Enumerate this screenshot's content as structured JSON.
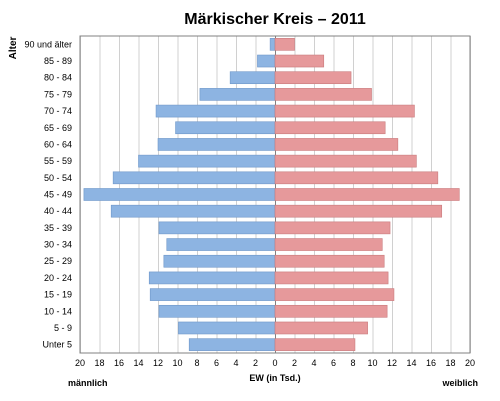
{
  "chart_data": {
    "type": "bar",
    "title": "Märkischer Kreis – 2011",
    "ylabel": "Alter",
    "xlabel": "EW (in Tsd.)",
    "xlabel_left": "männlich",
    "xlabel_right": "weiblich",
    "xlim": [
      -20,
      20
    ],
    "x_ticks": [
      -20,
      -18,
      -16,
      -14,
      -12,
      -10,
      -8,
      -6,
      -4,
      -2,
      0,
      2,
      4,
      6,
      8,
      10,
      12,
      14,
      16,
      18,
      20
    ],
    "x_tick_labels": [
      "20",
      "18",
      "16",
      "14",
      "12",
      "10",
      "8",
      "6",
      "4",
      "2",
      "0",
      "2",
      "4",
      "6",
      "8",
      "10",
      "12",
      "14",
      "16",
      "18",
      "20"
    ],
    "grid": true,
    "categories": [
      "90 und älter",
      "85 - 89",
      "80 - 84",
      "75 - 79",
      "70 - 74",
      "65 - 69",
      "60 - 64",
      "55 - 59",
      "50 - 54",
      "45 - 49",
      "40 - 44",
      "35 - 39",
      "30 - 34",
      "25 - 29",
      "20 - 24",
      "15 - 19",
      "10 - 14",
      "5 - 9",
      "Unter 5"
    ],
    "series": [
      {
        "name": "männlich",
        "color": "#8db4e2",
        "values": [
          0.5,
          1.8,
          4.6,
          7.7,
          12.2,
          10.2,
          12.0,
          14.0,
          16.6,
          19.6,
          16.8,
          11.9,
          11.1,
          11.4,
          12.9,
          12.8,
          11.9,
          9.9,
          8.8
        ]
      },
      {
        "name": "weiblich",
        "color": "#e6999b",
        "values": [
          2.0,
          5.0,
          7.8,
          9.9,
          14.3,
          11.3,
          12.6,
          14.5,
          16.7,
          18.9,
          17.1,
          11.8,
          11.0,
          11.2,
          11.6,
          12.2,
          11.5,
          9.5,
          8.2
        ]
      }
    ]
  }
}
